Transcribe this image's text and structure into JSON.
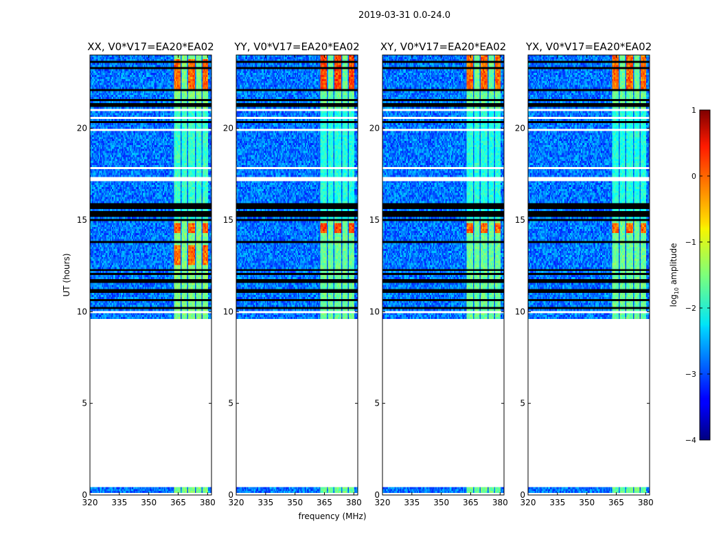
{
  "figure": {
    "suptitle": "2019-03-31 0.0-24.0",
    "xlabel": "frequency (MHz)",
    "ylabel": "UT (hours)",
    "colorbar": {
      "label_prefix": "log",
      "label_sub": "10",
      "label_suffix": " amplitude",
      "range": [
        -4,
        1
      ],
      "ticks": [
        1,
        0,
        -1,
        -2,
        -3,
        -4
      ],
      "tick_labels": [
        "1",
        "0",
        "−1",
        "−2",
        "−3",
        "−4"
      ],
      "colormap": "jet"
    },
    "empty_color": "#ffffff",
    "flag_color": "#000000"
  },
  "chart_data": [
    {
      "type": "heatmap",
      "title": "XX, V0*V17=EA20*EA02",
      "polarization": "XX",
      "xlabel": "frequency (MHz)",
      "ylabel": "UT (hours)",
      "xlim": [
        320,
        382
      ],
      "ylim": [
        0,
        24
      ],
      "xticks": [
        320,
        335,
        350,
        365,
        380
      ],
      "yticks": [
        0,
        5,
        10,
        15,
        20
      ],
      "data_time_ranges_h": [
        [
          0.15,
          0.45
        ],
        [
          9.6,
          24.0
        ]
      ],
      "background_log10_amplitude": -2.8,
      "rfi_band_mhz": [
        362.5,
        380.5
      ],
      "rfi_band_log10_amplitude": -1.5,
      "rfi_peak_log10_amplitude": 0.0,
      "rfi_strong_time_ranges_h": [
        [
          12.6,
          13.6
        ],
        [
          14.3,
          14.8
        ],
        [
          22.2,
          23.8
        ]
      ],
      "rfi_weak_time_ranges_h": [
        [
          15.0,
          21.0
        ]
      ]
    },
    {
      "type": "heatmap",
      "title": "YY, V0*V17=EA20*EA02",
      "polarization": "YY",
      "xlabel": "frequency (MHz)",
      "ylabel": "UT (hours)",
      "xlim": [
        320,
        382
      ],
      "ylim": [
        0,
        24
      ],
      "xticks": [
        320,
        335,
        350,
        365,
        380
      ],
      "yticks": [
        0,
        5,
        10,
        15,
        20
      ],
      "data_time_ranges_h": [
        [
          0.15,
          0.45
        ],
        [
          9.6,
          24.0
        ]
      ],
      "background_log10_amplitude": -2.8,
      "rfi_band_mhz": [
        362.5,
        380.5
      ],
      "rfi_band_log10_amplitude": -1.6,
      "rfi_peak_log10_amplitude": 0.2,
      "rfi_strong_time_ranges_h": [
        [
          14.3,
          14.8
        ],
        [
          22.2,
          24.0
        ]
      ],
      "rfi_weak_time_ranges_h": [
        [
          15.0,
          21.0
        ]
      ]
    },
    {
      "type": "heatmap",
      "title": "XY, V0*V17=EA20*EA02",
      "polarization": "XY",
      "xlabel": "frequency (MHz)",
      "ylabel": "UT (hours)",
      "xlim": [
        320,
        382
      ],
      "ylim": [
        0,
        24
      ],
      "xticks": [
        320,
        335,
        350,
        365,
        380
      ],
      "yticks": [
        0,
        5,
        10,
        15,
        20
      ],
      "data_time_ranges_h": [
        [
          0.15,
          0.45
        ],
        [
          9.6,
          24.0
        ]
      ],
      "background_log10_amplitude": -2.8,
      "rfi_band_mhz": [
        362.5,
        380.5
      ],
      "rfi_band_log10_amplitude": -1.6,
      "rfi_peak_log10_amplitude": 0.0,
      "rfi_strong_time_ranges_h": [
        [
          14.3,
          14.8
        ],
        [
          22.2,
          24.0
        ]
      ],
      "rfi_weak_time_ranges_h": [
        [
          15.0,
          21.0
        ]
      ]
    },
    {
      "type": "heatmap",
      "title": "YX, V0*V17=EA20*EA02",
      "polarization": "YX",
      "xlabel": "frequency (MHz)",
      "ylabel": "UT (hours)",
      "xlim": [
        320,
        382
      ],
      "ylim": [
        0,
        24
      ],
      "xticks": [
        320,
        335,
        350,
        365,
        380
      ],
      "yticks": [
        0,
        5,
        10,
        15,
        20
      ],
      "data_time_ranges_h": [
        [
          0.15,
          0.45
        ],
        [
          9.6,
          24.0
        ]
      ],
      "background_log10_amplitude": -2.8,
      "rfi_band_mhz": [
        362.5,
        380.5
      ],
      "rfi_band_log10_amplitude": -1.6,
      "rfi_peak_log10_amplitude": 0.0,
      "rfi_strong_time_ranges_h": [
        [
          14.3,
          14.8
        ],
        [
          22.2,
          24.0
        ]
      ],
      "rfi_weak_time_ranges_h": [
        [
          15.0,
          21.0
        ]
      ]
    }
  ],
  "flagged_time_ranges_h": [
    [
      10.15,
      10.3
    ],
    [
      10.55,
      10.7
    ],
    [
      11.05,
      11.25
    ],
    [
      11.55,
      11.8
    ],
    [
      11.95,
      12.1
    ],
    [
      12.2,
      12.3
    ],
    [
      13.75,
      13.9
    ],
    [
      14.9,
      15.1
    ],
    [
      15.2,
      15.45
    ],
    [
      15.55,
      15.7
    ],
    [
      15.75,
      15.9
    ],
    [
      20.3,
      20.45
    ],
    [
      21.2,
      21.35
    ],
    [
      21.5,
      21.6
    ],
    [
      22.05,
      22.15
    ],
    [
      23.25,
      23.35
    ],
    [
      23.55,
      23.62
    ]
  ],
  "gap_time_ranges_h": [
    [
      9.95,
      10.05
    ],
    [
      12.5,
      12.6
    ],
    [
      14.25,
      14.3
    ],
    [
      17.1,
      17.3
    ],
    [
      17.8,
      17.9
    ],
    [
      18.75,
      18.8
    ],
    [
      19.9,
      20.0
    ],
    [
      20.55,
      20.6
    ],
    [
      21.0,
      21.1
    ],
    [
      22.9,
      22.95
    ]
  ]
}
